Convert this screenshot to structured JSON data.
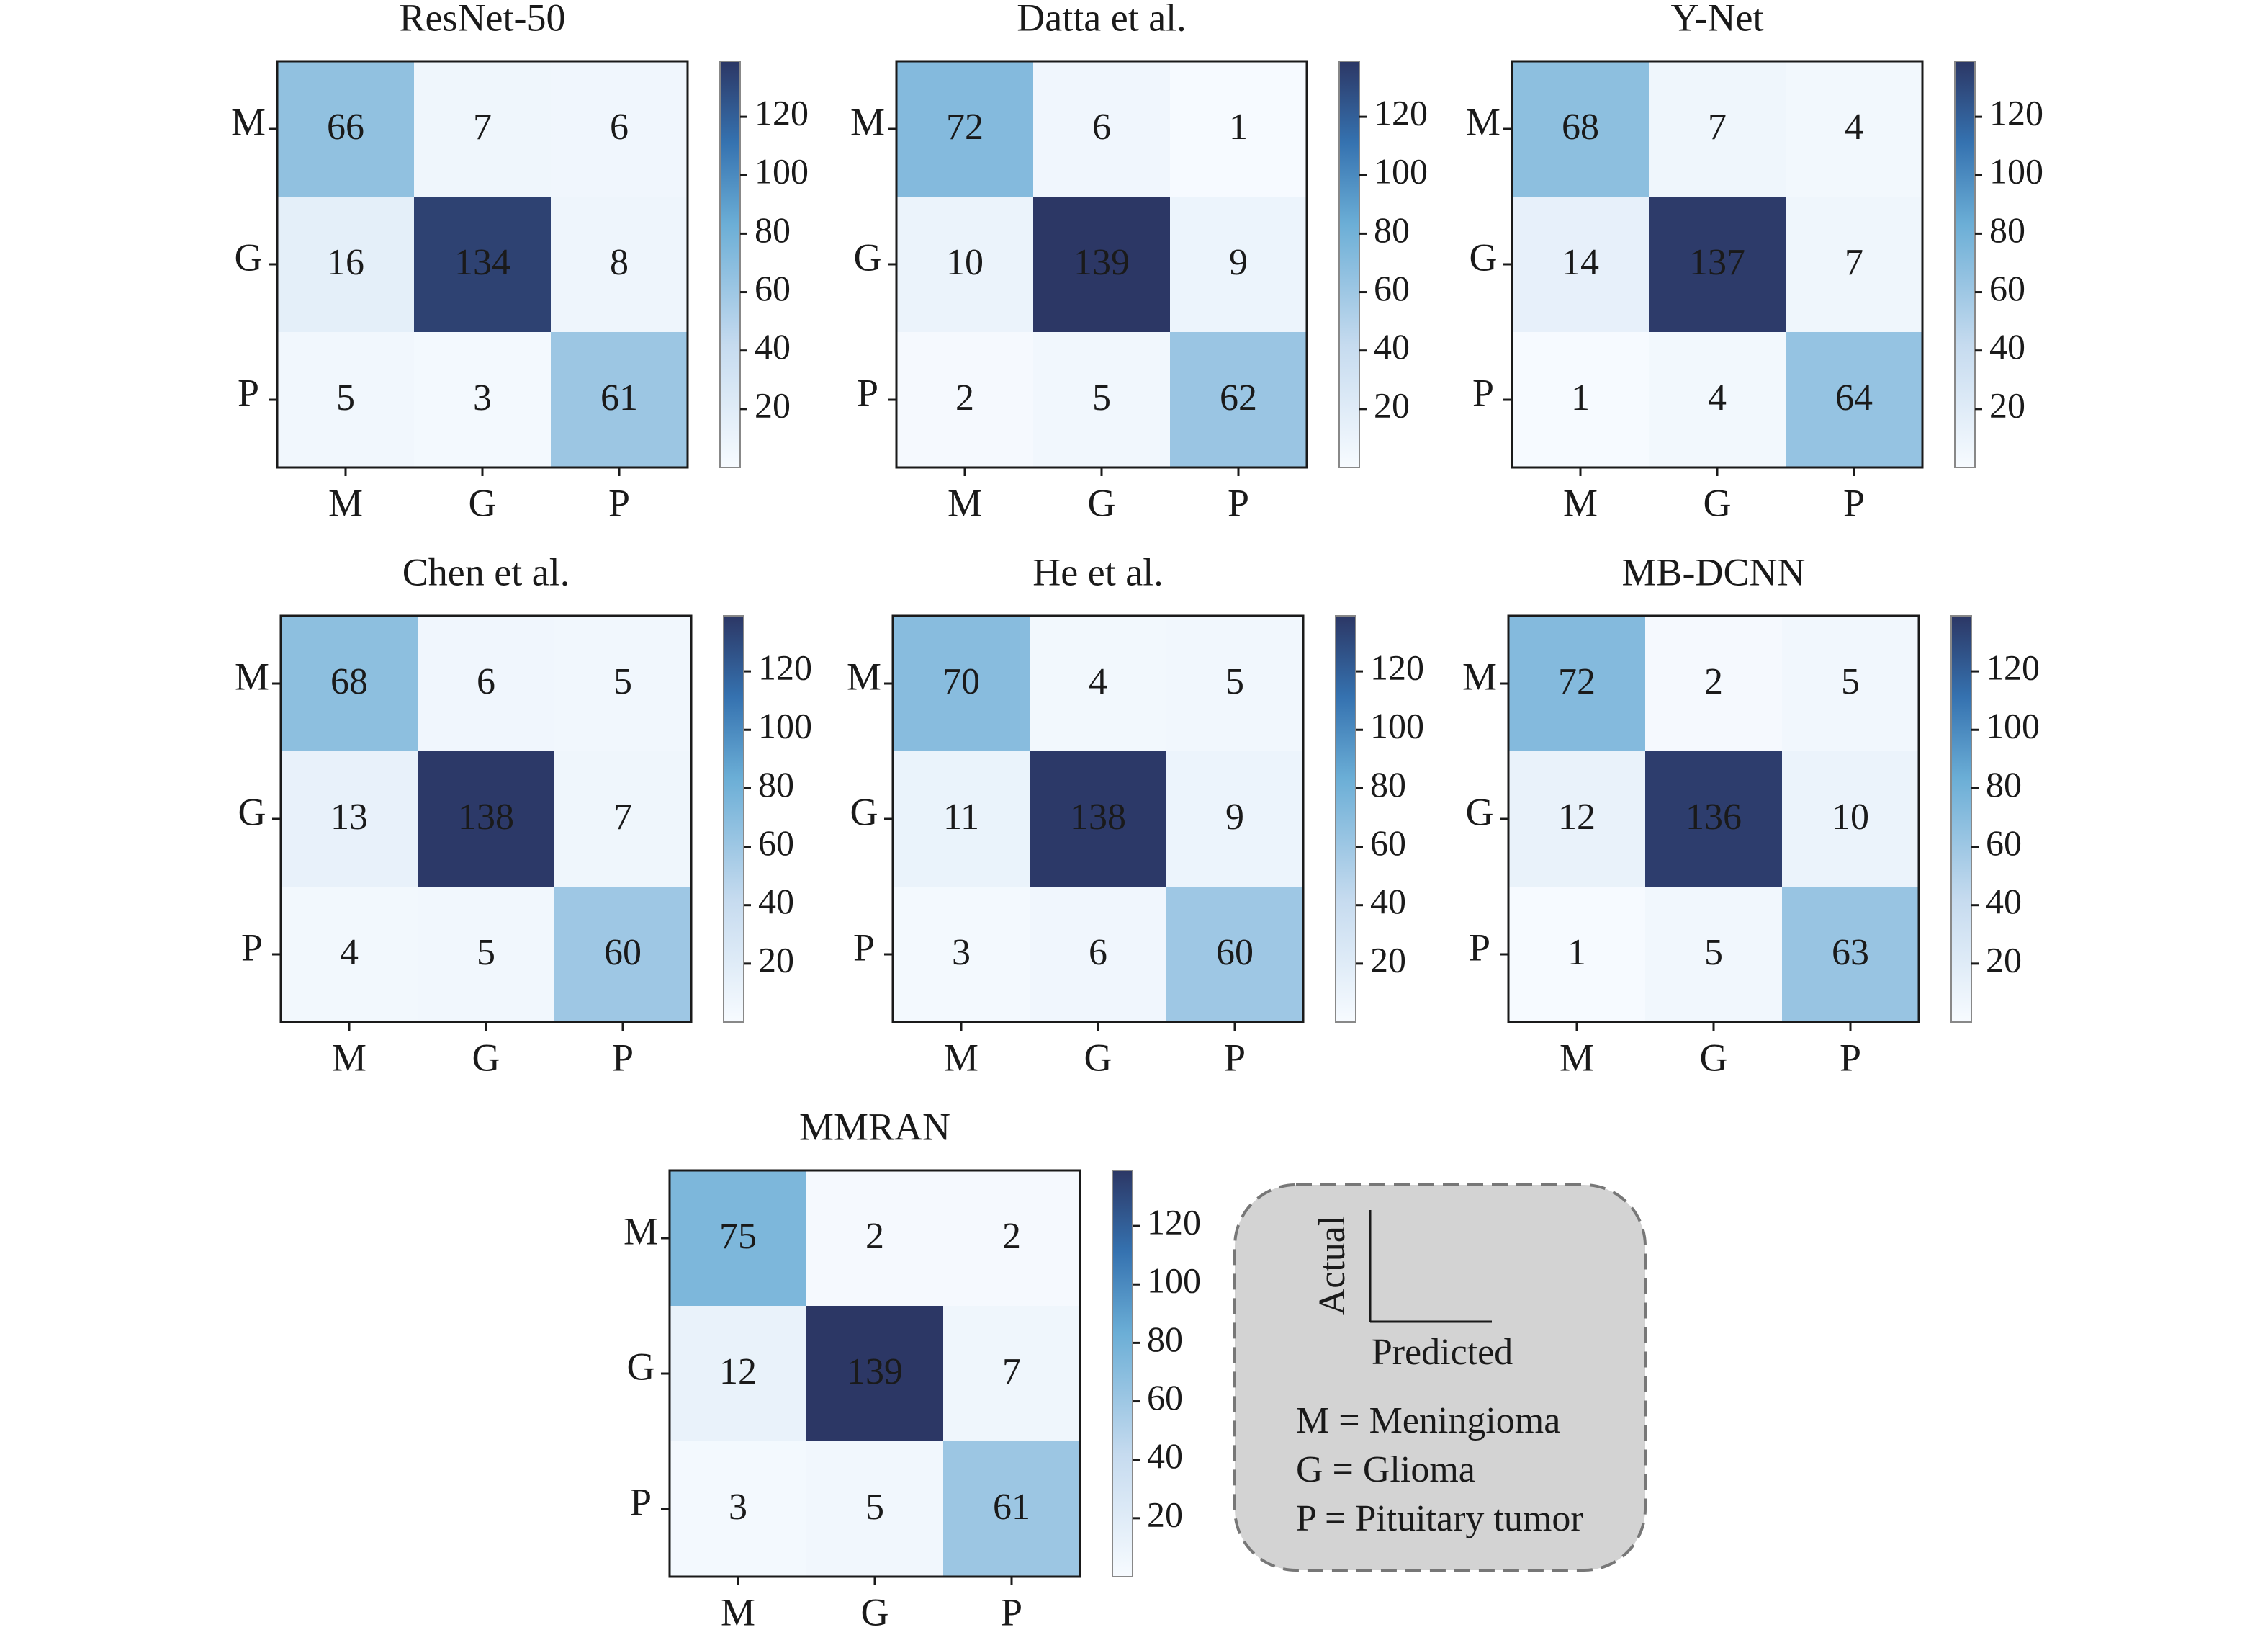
{
  "colorbar_max": 139,
  "colorbar_ticks": [
    20,
    40,
    60,
    80,
    100,
    120
  ],
  "colors": {
    "low": "#f7fbff",
    "mid": "#6baed6",
    "high": "#2c3765"
  },
  "chart_data": [
    {
      "type": "heatmap",
      "title": "ResNet-50",
      "row_labels": [
        "M",
        "G",
        "P"
      ],
      "col_labels": [
        "M",
        "G",
        "P"
      ],
      "values": [
        [
          66,
          7,
          6
        ],
        [
          16,
          134,
          8
        ],
        [
          5,
          3,
          61
        ]
      ],
      "ylabel": "Actual",
      "xlabel": "Predicted"
    },
    {
      "type": "heatmap",
      "title": "Datta et al.",
      "row_labels": [
        "M",
        "G",
        "P"
      ],
      "col_labels": [
        "M",
        "G",
        "P"
      ],
      "values": [
        [
          72,
          6,
          1
        ],
        [
          10,
          139,
          9
        ],
        [
          2,
          5,
          62
        ]
      ],
      "ylabel": "Actual",
      "xlabel": "Predicted"
    },
    {
      "type": "heatmap",
      "title": "Y-Net",
      "row_labels": [
        "M",
        "G",
        "P"
      ],
      "col_labels": [
        "M",
        "G",
        "P"
      ],
      "values": [
        [
          68,
          7,
          4
        ],
        [
          14,
          137,
          7
        ],
        [
          1,
          4,
          64
        ]
      ],
      "ylabel": "Actual",
      "xlabel": "Predicted"
    },
    {
      "type": "heatmap",
      "title": "Chen et al.",
      "row_labels": [
        "M",
        "G",
        "P"
      ],
      "col_labels": [
        "M",
        "G",
        "P"
      ],
      "values": [
        [
          68,
          6,
          5
        ],
        [
          13,
          138,
          7
        ],
        [
          4,
          5,
          60
        ]
      ],
      "ylabel": "Actual",
      "xlabel": "Predicted"
    },
    {
      "type": "heatmap",
      "title": "He et al.",
      "row_labels": [
        "M",
        "G",
        "P"
      ],
      "col_labels": [
        "M",
        "G",
        "P"
      ],
      "values": [
        [
          70,
          4,
          5
        ],
        [
          11,
          138,
          9
        ],
        [
          3,
          6,
          60
        ]
      ],
      "ylabel": "Actual",
      "xlabel": "Predicted"
    },
    {
      "type": "heatmap",
      "title": "MB-DCNN",
      "row_labels": [
        "M",
        "G",
        "P"
      ],
      "col_labels": [
        "M",
        "G",
        "P"
      ],
      "values": [
        [
          72,
          2,
          5
        ],
        [
          12,
          136,
          10
        ],
        [
          1,
          5,
          63
        ]
      ],
      "ylabel": "Actual",
      "xlabel": "Predicted"
    },
    {
      "type": "heatmap",
      "title": "MMRAN",
      "row_labels": [
        "M",
        "G",
        "P"
      ],
      "col_labels": [
        "M",
        "G",
        "P"
      ],
      "values": [
        [
          75,
          2,
          2
        ],
        [
          12,
          139,
          7
        ],
        [
          3,
          5,
          61
        ]
      ],
      "ylabel": "Actual",
      "xlabel": "Predicted"
    }
  ],
  "legend": {
    "actual_label": "Actual",
    "predicted_label": "Predicted",
    "entries": [
      "M = Meningioma",
      "G = Glioma",
      "P = Pituitary tumor"
    ]
  }
}
